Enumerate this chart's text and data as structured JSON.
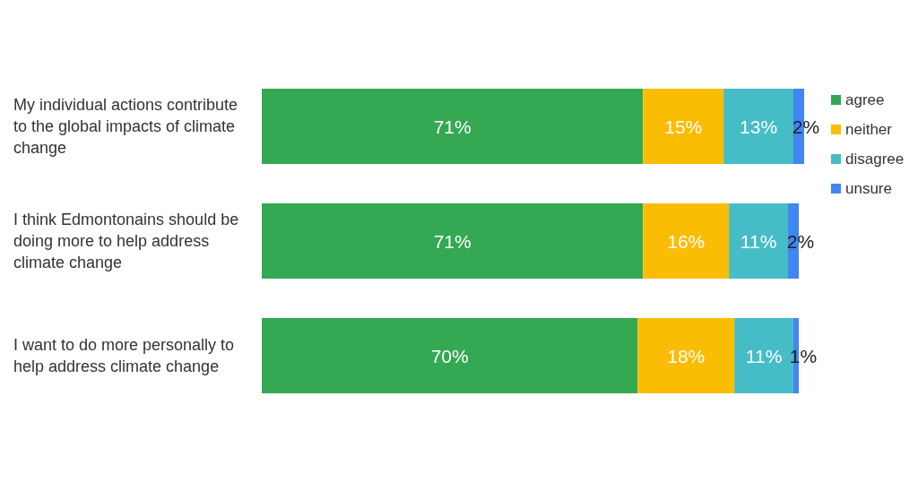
{
  "chart_data": {
    "type": "bar",
    "orientation": "horizontal",
    "stacked": true,
    "categories": [
      "My individual actions contribute to the global impacts of climate change",
      "I think Edmontonains should be doing more to help address climate change",
      "I want to do more personally to help address climate change"
    ],
    "series": [
      {
        "name": "agree",
        "color": "#34a853",
        "values": [
          71,
          71,
          70
        ],
        "value_labels": [
          "71%",
          "71%",
          "70%"
        ]
      },
      {
        "name": "neither",
        "color": "#fbbc04",
        "values": [
          15,
          16,
          18
        ],
        "value_labels": [
          "15%",
          "16%",
          "18%"
        ]
      },
      {
        "name": "disagree",
        "color": "#46bdc6",
        "values": [
          13,
          11,
          11
        ],
        "value_labels": [
          "13%",
          "11%",
          "11%"
        ]
      },
      {
        "name": "unsure",
        "color": "#4285f4",
        "values": [
          2,
          2,
          1
        ],
        "value_labels": [
          "2%",
          "2%",
          "1%"
        ]
      }
    ],
    "legend": "top right",
    "tick_labels": "y"
  }
}
